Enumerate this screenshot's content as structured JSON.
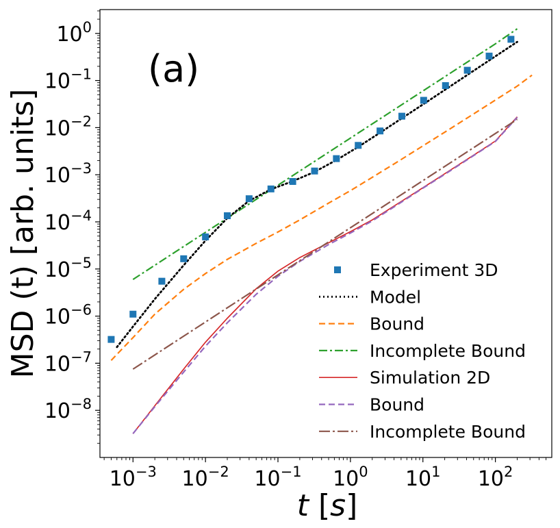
{
  "chart_data": {
    "type": "line",
    "xscale": "log",
    "yscale": "log",
    "xlim": [
      0.00035,
      600
    ],
    "ylim": [
      1e-09,
      3.2
    ],
    "xlabel_parts": {
      "var": "t",
      "unit": "s"
    },
    "ylabel": "MSD (t) [arb. units]",
    "panel_label": "(a)",
    "legend_location": "lower-right",
    "x_ticks": [
      {
        "base": "10",
        "exp": "−3",
        "value": 0.001
      },
      {
        "base": "10",
        "exp": "−2",
        "value": 0.01
      },
      {
        "base": "10",
        "exp": "−1",
        "value": 0.1
      },
      {
        "base": "10",
        "exp": "0",
        "value": 1
      },
      {
        "base": "10",
        "exp": "1",
        "value": 10
      },
      {
        "base": "10",
        "exp": "2",
        "value": 100
      }
    ],
    "y_ticks": [
      {
        "base": "10",
        "exp": "−8",
        "value": 1e-08
      },
      {
        "base": "10",
        "exp": "−7",
        "value": 1e-07
      },
      {
        "base": "10",
        "exp": "−6",
        "value": 1e-06
      },
      {
        "base": "10",
        "exp": "−5",
        "value": 1e-05
      },
      {
        "base": "10",
        "exp": "−4",
        "value": 0.0001
      },
      {
        "base": "10",
        "exp": "−3",
        "value": 0.001
      },
      {
        "base": "10",
        "exp": "−2",
        "value": 0.01
      },
      {
        "base": "10",
        "exp": "−1",
        "value": 0.1
      },
      {
        "base": "10",
        "exp": "0",
        "value": 1
      }
    ],
    "series": [
      {
        "name": "Experiment 3D",
        "style": "markers-square",
        "color": "#1f77b4",
        "x": [
          0.0005,
          0.001,
          0.0025,
          0.005,
          0.01,
          0.02,
          0.04,
          0.08,
          0.16,
          0.32,
          0.64,
          1.28,
          2.56,
          5.12,
          10.24,
          20.5,
          41,
          82,
          164
        ],
        "y": [
          3.2e-07,
          1.1e-06,
          5.5e-06,
          1.65e-05,
          4.8e-05,
          0.000135,
          0.00031,
          0.0005,
          0.00072,
          0.0012,
          0.0022,
          0.0042,
          0.0085,
          0.0175,
          0.038,
          0.078,
          0.165,
          0.33,
          0.75
        ]
      },
      {
        "name": "Model",
        "style": "dotted",
        "color": "#000000",
        "x": [
          0.0006,
          0.001,
          0.002,
          0.005,
          0.01,
          0.02,
          0.04,
          0.08,
          0.16,
          0.32,
          0.64,
          1.28,
          2.56,
          5.12,
          10,
          20,
          40,
          80,
          200
        ],
        "y": [
          2.2e-07,
          6e-07,
          2.3e-06,
          1.2e-05,
          4e-05,
          0.00012,
          0.00028,
          0.00049,
          0.00073,
          0.00115,
          0.00205,
          0.0039,
          0.0078,
          0.0158,
          0.031,
          0.063,
          0.128,
          0.26,
          0.66
        ]
      },
      {
        "name": "Bound",
        "style": "dashed",
        "color": "#ff7f0e",
        "x": [
          0.0005,
          0.001,
          0.002,
          0.005,
          0.01,
          0.02,
          0.05,
          0.1,
          0.2,
          0.5,
          1,
          2,
          5,
          10,
          20,
          50,
          100,
          200,
          320
        ],
        "y": [
          1.15e-07,
          3.5e-07,
          1.1e-06,
          3.7e-06,
          8e-06,
          1.6e-05,
          3.5e-05,
          6.1e-05,
          0.00011,
          0.00025,
          0.00046,
          0.00088,
          0.0021,
          0.0041,
          0.008,
          0.0195,
          0.0385,
          0.076,
          0.13
        ]
      },
      {
        "name": "Incomplete Bound",
        "style": "dashdot",
        "color": "#2ca02c",
        "x": [
          0.001,
          0.01,
          0.1,
          1,
          10,
          100,
          200
        ],
        "y": [
          6e-06,
          6e-05,
          0.0006,
          0.006,
          0.06,
          0.6,
          1.25
        ]
      },
      {
        "name": "Simulation 2D",
        "style": "solid",
        "color": "#d62728",
        "x": [
          0.001,
          0.002,
          0.005,
          0.01,
          0.02,
          0.05,
          0.1,
          0.2,
          0.5,
          1,
          2,
          5,
          10,
          20,
          50,
          100,
          200
        ],
        "y": [
          3.2e-09,
          1.25e-08,
          7.5e-08,
          2.8e-07,
          9e-07,
          3.8e-06,
          9e-06,
          1.75e-05,
          3.6e-05,
          6.2e-05,
          0.00011,
          0.00027,
          0.00053,
          0.00105,
          0.0026,
          0.0052,
          0.017
        ]
      },
      {
        "name": "Bound",
        "style": "dashed",
        "color": "#9467bd",
        "x": [
          0.001,
          0.002,
          0.005,
          0.01,
          0.02,
          0.05,
          0.1,
          0.2,
          0.5,
          1,
          2,
          5,
          10,
          20,
          50,
          100,
          200
        ],
        "y": [
          3.2e-09,
          1.2e-08,
          6.5e-08,
          2.3e-07,
          7.2e-07,
          2.9e-06,
          7e-06,
          1.45e-05,
          3.3e-05,
          5.8e-05,
          0.000105,
          0.00026,
          0.00052,
          0.00102,
          0.00255,
          0.0051,
          0.0165
        ]
      },
      {
        "name": "Incomplete Bound",
        "style": "dashdot-long",
        "color": "#8c564b",
        "x": [
          0.001,
          0.01,
          0.1,
          1,
          10,
          100,
          200
        ],
        "y": [
          7.5e-08,
          7.5e-07,
          7.5e-06,
          7.5e-05,
          0.00075,
          0.0075,
          0.015
        ]
      }
    ]
  }
}
